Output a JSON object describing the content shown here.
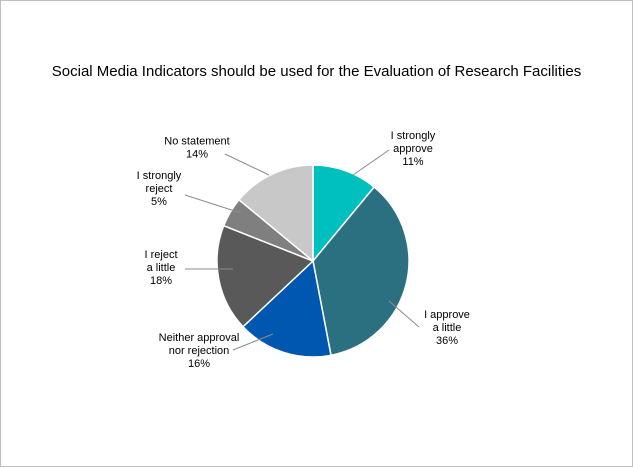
{
  "chart_data": {
    "type": "pie",
    "title": "Social Media Indicators should be used for the Evaluation of Research Facilities",
    "slices": [
      {
        "name_lines": [
          "I strongly",
          "approve"
        ],
        "value": 11,
        "value_label": "11%",
        "color": "#00BFBF"
      },
      {
        "name_lines": [
          "I approve",
          "a little"
        ],
        "value": 36,
        "value_label": "36%",
        "color": "#2A7080"
      },
      {
        "name_lines": [
          "Neither approval",
          "nor rejection"
        ],
        "value": 16,
        "value_label": "16%",
        "color": "#0057B0"
      },
      {
        "name_lines": [
          "I reject",
          "a little"
        ],
        "value": 18,
        "value_label": "18%",
        "color": "#595959"
      },
      {
        "name_lines": [
          "I strongly",
          "reject"
        ],
        "value": 5,
        "value_label": "5%",
        "color": "#7F7F7F"
      },
      {
        "name_lines": [
          "No statement"
        ],
        "value": 14,
        "value_label": "14%",
        "color": "#C8C8C8"
      }
    ],
    "legend": "none"
  }
}
